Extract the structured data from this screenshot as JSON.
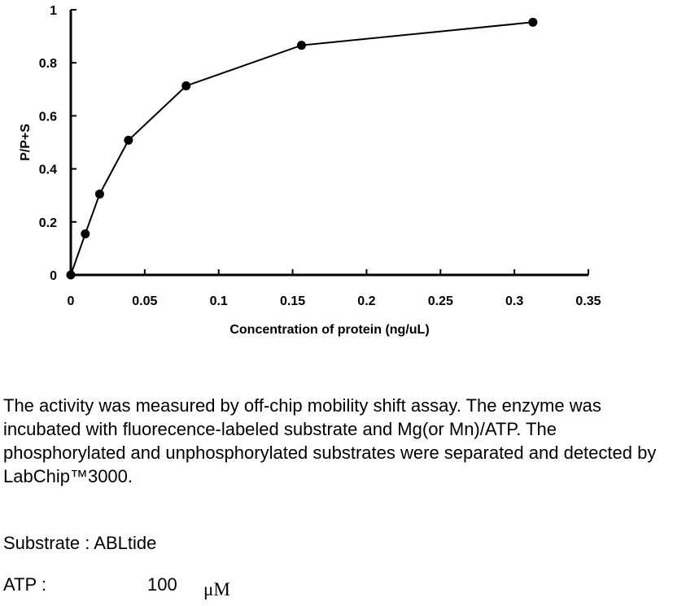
{
  "chart_data": {
    "type": "line",
    "title": "",
    "xlabel": "Concentration of protein (ng/uL)",
    "ylabel": "P/P+S",
    "xlim": [
      0,
      0.35
    ],
    "ylim": [
      0,
      1
    ],
    "x_ticks": [
      "0",
      "0.05",
      "0.1",
      "0.15",
      "0.2",
      "0.25",
      "0.3",
      "0.35"
    ],
    "y_ticks": [
      "0",
      "0.2",
      "0.4",
      "0.6",
      "0.8",
      "1"
    ],
    "grid": false,
    "legend": "none",
    "series": [
      {
        "x": [
          0,
          0.0098,
          0.0195,
          0.039,
          0.078,
          0.156,
          0.3125
        ],
        "y": [
          0,
          0.155,
          0.305,
          0.508,
          0.713,
          0.866,
          0.953
        ]
      }
    ]
  },
  "description": "The activity was measured by off-chip mobility shift assay. The enzyme was incubated with fluorecence-labeled  substrate and Mg(or Mn)/ATP. The phosphorylated and unphosphorylated substrates were separated and detected by LabChip™3000.",
  "conditions": {
    "substrate_line": "Substrate : ABLtide",
    "atp_label": "ATP :",
    "atp_value": "100",
    "atp_unit": "μM"
  }
}
